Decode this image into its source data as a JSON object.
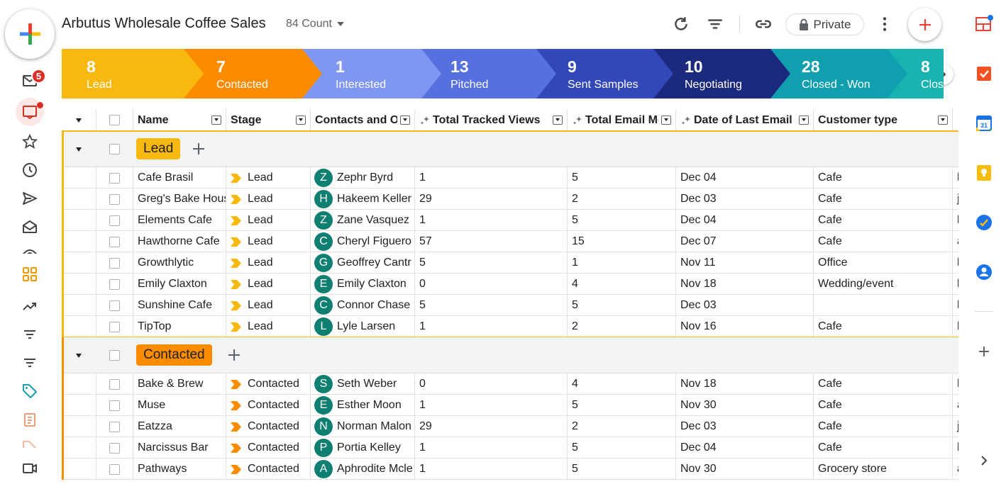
{
  "app": {
    "title": "Arbutus Wholesale Coffee Sales",
    "count_label": "84 Count",
    "private_label": "Private",
    "mail_badge": "5"
  },
  "pipeline": [
    {
      "count": "8",
      "label": "Lead",
      "color": "#f9b80e"
    },
    {
      "count": "7",
      "label": "Contacted",
      "color": "#fb8c00"
    },
    {
      "count": "1",
      "label": "Interested",
      "color": "#7f96f2"
    },
    {
      "count": "13",
      "label": "Pitched",
      "color": "#5670de"
    },
    {
      "count": "9",
      "label": "Sent Samples",
      "color": "#3248b8"
    },
    {
      "count": "10",
      "label": "Negotiating",
      "color": "#1c2a7e"
    },
    {
      "count": "28",
      "label": "Closed - Won",
      "color": "#0f9fae"
    },
    {
      "count": "8",
      "label": "Clos",
      "color": "#18b3b0"
    }
  ],
  "columns": [
    {
      "label": "Name",
      "icon": ""
    },
    {
      "label": "Stage",
      "icon": ""
    },
    {
      "label": "Contacts and Orga",
      "icon": ""
    },
    {
      "label": "Total Tracked Views",
      "icon": "sparkle-icon"
    },
    {
      "label": "Total Email Messa",
      "icon": "sparkle-icon"
    },
    {
      "label": "Date of Last Email",
      "icon": "sparkle-icon"
    },
    {
      "label": "Customer type",
      "icon": ""
    }
  ],
  "groups": [
    {
      "name": "Lead",
      "color": "#f9b80e",
      "rows": [
        {
          "name": "Cafe Brasil",
          "stage": "Lead",
          "initial": "Z",
          "contact": "Zephr Byrd",
          "views": "1",
          "emails": "5",
          "date": "Dec 04",
          "type": "Cafe",
          "extra": "l"
        },
        {
          "name": "Greg's Bake Hous",
          "stage": "Lead",
          "initial": "H",
          "contact": "Hakeem Keller",
          "views": "29",
          "emails": "2",
          "date": "Dec 03",
          "type": "Cafe",
          "extra": "j"
        },
        {
          "name": "Elements Cafe",
          "stage": "Lead",
          "initial": "Z",
          "contact": "Zane Vasquez",
          "views": "1",
          "emails": "5",
          "date": "Dec 04",
          "type": "Cafe",
          "extra": "l"
        },
        {
          "name": "Hawthorne Cafe",
          "stage": "Lead",
          "initial": "C",
          "contact": "Cheryl Figuero",
          "views": "57",
          "emails": "15",
          "date": "Dec 07",
          "type": "Cafe",
          "extra": "a"
        },
        {
          "name": "Growthlytic",
          "stage": "Lead",
          "initial": "G",
          "contact": "Geoffrey Cantr",
          "views": "5",
          "emails": "1",
          "date": "Nov 11",
          "type": "Office",
          "extra": "l"
        },
        {
          "name": "Emily Claxton",
          "stage": "Lead",
          "initial": "E",
          "contact": "Emily Claxton",
          "views": "0",
          "emails": "4",
          "date": "Nov 18",
          "type": "Wedding/event",
          "extra": "l"
        },
        {
          "name": "Sunshine Cafe",
          "stage": "Lead",
          "initial": "C",
          "contact": "Connor Chase",
          "views": "5",
          "emails": "5",
          "date": "Dec 03",
          "type": "",
          "extra": "l"
        },
        {
          "name": "TipTop",
          "stage": "Lead",
          "initial": "L",
          "contact": "Lyle Larsen",
          "views": "1",
          "emails": "2",
          "date": "Nov 16",
          "type": "Cafe",
          "extra": "l"
        }
      ]
    },
    {
      "name": "Contacted",
      "color": "#fb8c00",
      "rows": [
        {
          "name": "Bake & Brew",
          "stage": "Contacted",
          "initial": "S",
          "contact": "Seth Weber",
          "views": "0",
          "emails": "4",
          "date": "Nov 18",
          "type": "Cafe",
          "extra": "l"
        },
        {
          "name": "Muse",
          "stage": "Contacted",
          "initial": "E",
          "contact": "Esther Moon",
          "views": "1",
          "emails": "5",
          "date": "Nov 30",
          "type": "Cafe",
          "extra": "a"
        },
        {
          "name": "Eatzza",
          "stage": "Contacted",
          "initial": "N",
          "contact": "Norman Malon",
          "views": "29",
          "emails": "2",
          "date": "Dec 03",
          "type": "Cafe",
          "extra": "j"
        },
        {
          "name": "Narcissus Bar",
          "stage": "Contacted",
          "initial": "P",
          "contact": "Portia Kelley",
          "views": "1",
          "emails": "5",
          "date": "Dec 04",
          "type": "Cafe",
          "extra": "l"
        },
        {
          "name": "Pathways",
          "stage": "Contacted",
          "initial": "A",
          "contact": "Aphrodite Mcle",
          "views": "1",
          "emails": "5",
          "date": "Nov 30",
          "type": "Grocery store",
          "extra": "a"
        }
      ]
    }
  ]
}
